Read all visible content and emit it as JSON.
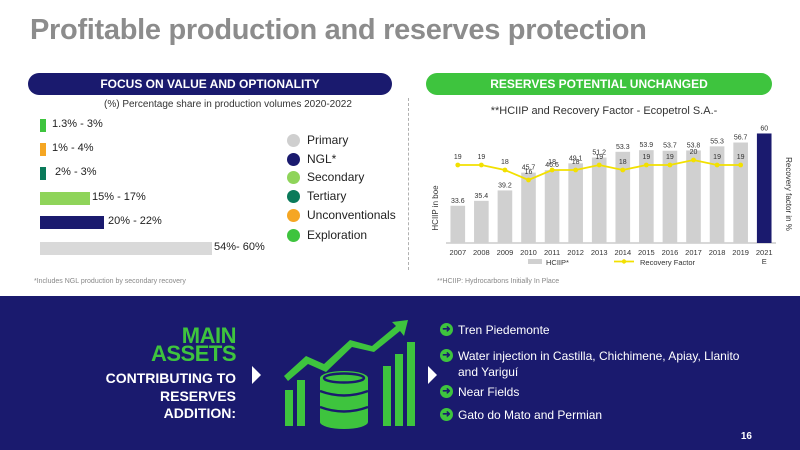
{
  "slide": {
    "title": "Profitable production and reserves protection",
    "page_number": "16"
  },
  "left_panel": {
    "header": "FOCUS ON VALUE AND OPTIONALITY",
    "subtitle": "(%) Percentage share in production volumes 2020-2022",
    "footnote": "*Includes NGL production by secondary recovery",
    "bars": [
      {
        "label": "1.3% - 3%",
        "color": "#3ec43e",
        "share_mid": 2.15
      },
      {
        "label": "1% - 4%",
        "color": "#f5a623",
        "share_mid": 2.5
      },
      {
        "label": "2% - 3%",
        "color": "#0a7a5a",
        "share_mid": 2.5
      },
      {
        "label": "15% - 17%",
        "color": "#8fd45a",
        "share_mid": 16
      },
      {
        "label": "20% - 22%",
        "color": "#1a1a6e",
        "share_mid": 21
      },
      {
        "label": "54%- 60%",
        "color": "#d9d9d9",
        "share_mid": 57
      }
    ],
    "legend": [
      {
        "label": "Primary",
        "color": "#cfcfcf"
      },
      {
        "label": "NGL*",
        "color": "#1a1a6e"
      },
      {
        "label": "Secondary",
        "color": "#8fd45a"
      },
      {
        "label": "Tertiary",
        "color": "#0a7a5a"
      },
      {
        "label": "Unconventionals",
        "color": "#f5a623"
      },
      {
        "label": "Exploration",
        "color": "#3ec43e"
      }
    ]
  },
  "right_panel": {
    "header": "RESERVES POTENTIAL UNCHANGED",
    "footnote": "**HCIIP: Hydrocarbons Initially In Place"
  },
  "chart_data": {
    "type": "bar",
    "title": "**HCIIP and Recovery Factor - Ecopetrol S.A.-",
    "ylabel": "HCIIP in boe",
    "y2label": "Recovery  factor in %",
    "categories": [
      "2007",
      "2008",
      "2009",
      "2010",
      "2011",
      "2012",
      "2013",
      "2014",
      "2015",
      "2016",
      "2017",
      "2018",
      "2019",
      "2021 E"
    ],
    "series": [
      {
        "name": "HCIIP*",
        "type": "bar",
        "color": "#d0d0d0",
        "values": [
          33.6,
          35.4,
          39.2,
          45.7,
          46.6,
          49.1,
          51.2,
          53.3,
          53.9,
          53.7,
          53.8,
          55.3,
          56.7,
          60
        ]
      },
      {
        "name": "Recovery Factor",
        "type": "line",
        "color": "#f2e000",
        "values": [
          19,
          19,
          18,
          16,
          18,
          18,
          19,
          18,
          19,
          19,
          20,
          19,
          19,
          null
        ]
      }
    ],
    "last_bar_color": "#1a1a6e",
    "bar_ylim": [
      20,
      62
    ],
    "line_ylim": [
      10,
      24
    ],
    "legend_position": "bottom"
  },
  "bottom_panel": {
    "title_line1": "MAIN",
    "title_line2": "ASSETS",
    "sub_line1": "CONTRIBUTING TO",
    "sub_line2": "RESERVES",
    "sub_line3": "ADDITION:",
    "bullets": [
      "Tren Piedemonte",
      "Water injection in Castilla, Chichimene, Apiay, Llanito and Yariguí",
      "Near Fields",
      "Gato do Mato and Permian"
    ]
  }
}
